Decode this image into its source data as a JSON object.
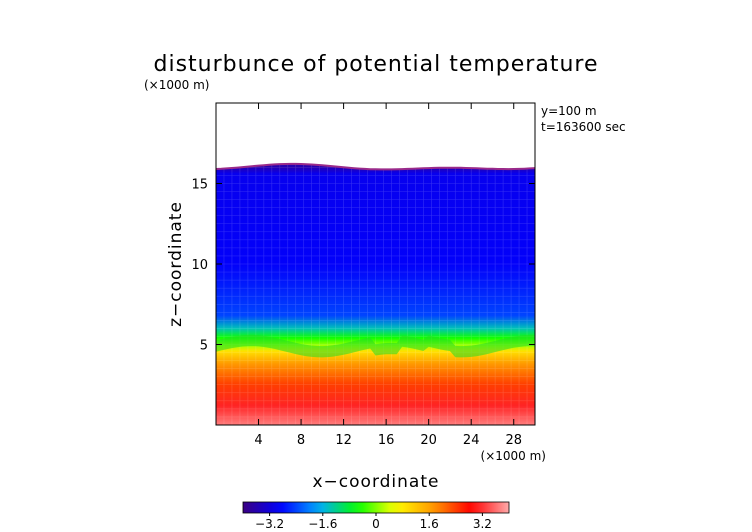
{
  "chart_data": {
    "type": "heatmap",
    "title": "disturbunce of potential temperature",
    "xlabel": "x−coordinate",
    "ylabel": "z−coordinate",
    "x_unit_label": "(×1000 m)",
    "y_unit_label": "(×1000 m)",
    "annotations": [
      "y=100  m",
      "t=163600 sec"
    ],
    "xlim": [
      0,
      30
    ],
    "ylim": [
      0,
      20
    ],
    "x_ticks": [
      4,
      8,
      12,
      16,
      20,
      24,
      28
    ],
    "y_ticks": [
      5,
      10,
      15
    ],
    "x_tick_labels": [
      "4",
      "8",
      "12",
      "16",
      "20",
      "24",
      "28"
    ],
    "y_tick_labels": [
      "5",
      "10",
      "15"
    ],
    "colorbar": {
      "range": [
        -4,
        4
      ],
      "ticks": [
        -3.2,
        -1.6,
        0,
        1.6,
        3.2
      ],
      "tick_labels": [
        "−3.2",
        "−1.6",
        "0",
        "1.6",
        "3.2"
      ]
    },
    "field_top_km": 16,
    "bands": [
      {
        "z": 16.0,
        "value": -3.6
      },
      {
        "z": 15.6,
        "value": -3.0
      },
      {
        "z": 10.0,
        "value": -2.9
      },
      {
        "z": 6.8,
        "value": -2.4
      },
      {
        "z": 6.0,
        "value": -1.4
      },
      {
        "z": 5.4,
        "value": -0.5
      },
      {
        "z": 4.9,
        "value": 0.2
      },
      {
        "z": 4.6,
        "value": 0.9
      },
      {
        "z": 3.8,
        "value": 1.7
      },
      {
        "z": 2.5,
        "value": 2.4
      },
      {
        "z": 1.2,
        "value": 3.1
      },
      {
        "z": 0.0,
        "value": 3.7
      }
    ],
    "colors": [
      "#3a0082",
      "#0000ff",
      "#00aaff",
      "#00ff00",
      "#ffff00",
      "#ff9900",
      "#ff0000",
      "#ffaaaa"
    ]
  }
}
